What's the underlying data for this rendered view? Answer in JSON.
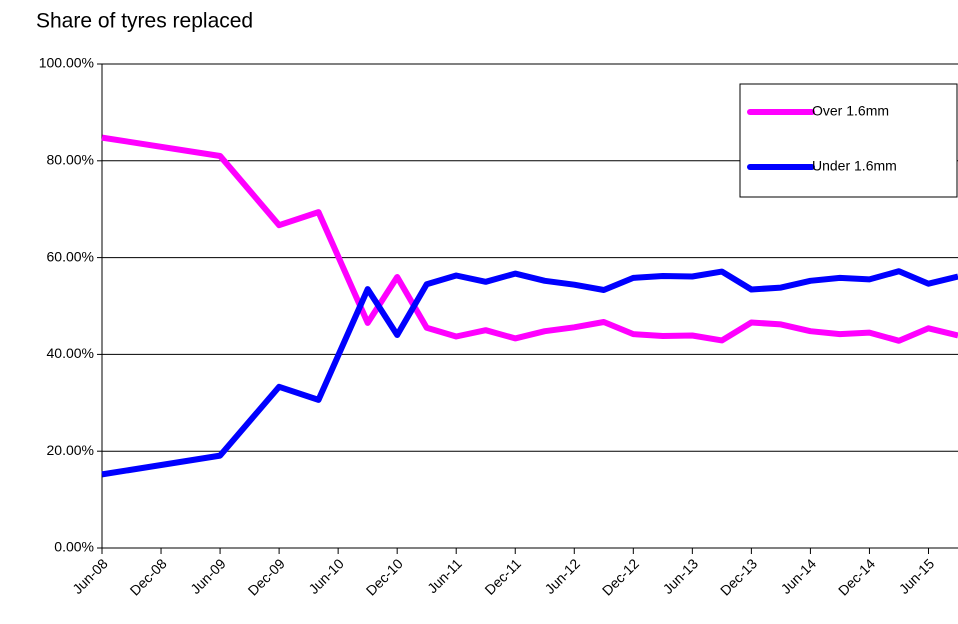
{
  "chart_data": {
    "type": "line",
    "title": "Share of tyres replaced",
    "x": [
      "2008-06",
      "2009-06",
      "2009-12",
      "2010-04",
      "2010-09",
      "2010-12",
      "2011-03",
      "2011-06",
      "2011-09",
      "2011-12",
      "2012-03",
      "2012-06",
      "2012-09",
      "2012-12",
      "2013-03",
      "2013-06",
      "2013-09",
      "2013-12",
      "2014-03",
      "2014-06",
      "2014-09",
      "2014-12",
      "2015-03",
      "2015-06",
      "2015-09"
    ],
    "series": [
      {
        "name": "Over 1.6mm",
        "color": "#ff00ff",
        "values": [
          84.8,
          81.0,
          66.7,
          69.4,
          46.5,
          56.0,
          45.5,
          43.7,
          45.0,
          43.3,
          44.8,
          45.6,
          46.7,
          44.2,
          43.8,
          43.9,
          42.9,
          46.6,
          46.2,
          44.8,
          44.2,
          44.5,
          42.8,
          45.4,
          43.9
        ]
      },
      {
        "name": "Under 1.6mm",
        "color": "#0000ff",
        "values": [
          15.2,
          19.1,
          33.3,
          30.6,
          53.5,
          44.0,
          54.5,
          56.3,
          55.0,
          56.7,
          55.2,
          54.4,
          53.3,
          55.8,
          56.2,
          56.1,
          57.1,
          53.4,
          53.8,
          55.2,
          55.8,
          55.5,
          57.2,
          54.6,
          56.1
        ]
      }
    ],
    "xlim": [
      "2008-06",
      "2015-09"
    ],
    "xticks": [
      {
        "value": "2008-06",
        "label": "Jun-08"
      },
      {
        "value": "2008-12",
        "label": "Dec-08"
      },
      {
        "value": "2009-06",
        "label": "Jun-09"
      },
      {
        "value": "2009-12",
        "label": "Dec-09"
      },
      {
        "value": "2010-06",
        "label": "Jun-10"
      },
      {
        "value": "2010-12",
        "label": "Dec-10"
      },
      {
        "value": "2011-06",
        "label": "Jun-11"
      },
      {
        "value": "2011-12",
        "label": "Dec-11"
      },
      {
        "value": "2012-06",
        "label": "Jun-12"
      },
      {
        "value": "2012-12",
        "label": "Dec-12"
      },
      {
        "value": "2013-06",
        "label": "Jun-13"
      },
      {
        "value": "2013-12",
        "label": "Dec-13"
      },
      {
        "value": "2014-06",
        "label": "Jun-14"
      },
      {
        "value": "2014-12",
        "label": "Dec-14"
      },
      {
        "value": "2015-06",
        "label": "Jun-15"
      }
    ],
    "ylim": [
      0,
      100
    ],
    "yticks": [
      {
        "value": 0,
        "label": "0.00%"
      },
      {
        "value": 20,
        "label": "20.00%"
      },
      {
        "value": 40,
        "label": "40.00%"
      },
      {
        "value": 60,
        "label": "60.00%"
      },
      {
        "value": 80,
        "label": "80.00%"
      },
      {
        "value": 100,
        "label": "100.00%"
      }
    ],
    "grid": true,
    "legend": "top-right"
  }
}
